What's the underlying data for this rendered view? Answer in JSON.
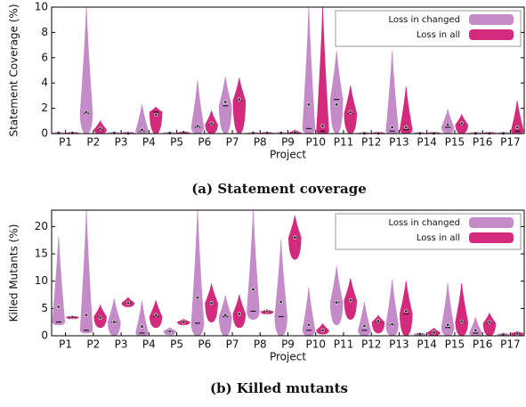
{
  "chart_data": [
    {
      "type": "violin",
      "caption": "(a) Statement coverage",
      "xlabel": "Project",
      "ylabel": "Statement Coverage (%)",
      "categories": [
        "P1",
        "P2",
        "P3",
        "P4",
        "P5",
        "P6",
        "P7",
        "P8",
        "P9",
        "P10",
        "P11",
        "P12",
        "P13",
        "P14",
        "P15",
        "P16",
        "P17"
      ],
      "ylim": [
        0,
        10
      ],
      "yticks": [
        0,
        2,
        4,
        6,
        8,
        10
      ],
      "legend": "upper right",
      "series": [
        {
          "name": "Loss in changed",
          "color": "#c58bc8",
          "min": [
            0,
            0,
            0,
            0,
            0,
            0,
            0,
            0,
            0,
            0,
            0,
            0,
            0,
            0,
            0,
            0,
            0
          ],
          "max": [
            0.1,
            10,
            0.1,
            2.3,
            0.1,
            4.2,
            4.5,
            0.1,
            0.1,
            10,
            6.5,
            0.05,
            6.5,
            0.05,
            1.9,
            0.05,
            0.05
          ],
          "median": [
            0,
            1.6,
            0,
            0.2,
            0,
            0.5,
            2.2,
            0,
            0,
            0.4,
            2.7,
            0,
            0.2,
            0,
            0.5,
            0,
            0
          ],
          "mean": [
            0.05,
            1.7,
            0.05,
            0.3,
            0.05,
            0.6,
            2.5,
            0.05,
            0.05,
            2.3,
            2.3,
            0.02,
            0.5,
            0.02,
            0.7,
            0.02,
            0.02
          ]
        },
        {
          "name": "Loss in all",
          "color": "#d42a7e",
          "min": [
            0,
            0,
            0,
            0,
            0,
            0,
            0,
            0,
            0,
            0,
            0,
            0,
            0,
            0,
            0,
            0,
            0
          ],
          "max": [
            0.1,
            1,
            0.05,
            2.1,
            0.2,
            1.8,
            4.4,
            0.1,
            0.3,
            10,
            3.8,
            0.05,
            3.7,
            0.05,
            1.5,
            0.05,
            2.6
          ],
          "median": [
            0,
            0.3,
            0,
            1.7,
            0.05,
            0.7,
            2.6,
            0,
            0.05,
            0.2,
            1.6,
            0,
            0.3,
            0,
            0.7,
            0,
            0.2
          ],
          "mean": [
            0.05,
            0.4,
            0.02,
            1.5,
            0.1,
            0.8,
            2.7,
            0.05,
            0.1,
            0.6,
            1.7,
            0.02,
            0.5,
            0.02,
            0.8,
            0.02,
            0.5
          ]
        }
      ]
    },
    {
      "type": "violin",
      "caption": "(b) Killed mutants",
      "xlabel": "Project",
      "ylabel": "Killed Mutants (%)",
      "categories": [
        "P1",
        "P2",
        "P3",
        "P4",
        "P5",
        "P6",
        "P7",
        "P8",
        "P9",
        "P10",
        "P11",
        "P12",
        "P13",
        "P14",
        "P15",
        "P16",
        "P17"
      ],
      "ylim": [
        0,
        23
      ],
      "yticks": [
        0,
        5,
        10,
        15,
        20
      ],
      "legend": "upper right",
      "series": [
        {
          "name": "Loss in changed",
          "color": "#c58bc8",
          "min": [
            2,
            0.5,
            0,
            0,
            0.2,
            0,
            0,
            3,
            0,
            0,
            2,
            0,
            0,
            0,
            0,
            0,
            0
          ],
          "max": [
            18.2,
            23,
            6.8,
            6.4,
            1.5,
            23,
            7.4,
            23,
            17.5,
            8.8,
            12.7,
            6.2,
            10.3,
            0.6,
            9.6,
            3.4,
            0.6
          ],
          "median": [
            2.5,
            1,
            2.5,
            0.5,
            0.8,
            2.3,
            3.5,
            4.5,
            3.5,
            1,
            6.1,
            1,
            2,
            0.3,
            1.5,
            0.5,
            0.2
          ],
          "mean": [
            5.3,
            3.8,
            2.5,
            1.7,
            0.8,
            7,
            3.8,
            8.5,
            6.2,
            2,
            6.1,
            1.8,
            2.1,
            0.3,
            2,
            1,
            0.2
          ]
        },
        {
          "name": "Loss in all",
          "color": "#d42a7e",
          "min": [
            3.1,
            1.5,
            5.3,
            1.5,
            2,
            2.5,
            1.5,
            4,
            14,
            0.3,
            3,
            0.5,
            0,
            0,
            0,
            0,
            0
          ],
          "max": [
            3.6,
            5.6,
            7,
            6.5,
            3,
            9.5,
            7.5,
            4.8,
            22,
            2.2,
            10.5,
            3.7,
            10,
            1.4,
            9.6,
            4.1,
            0.8
          ],
          "median": [
            3.4,
            3.5,
            6,
            3.5,
            2.5,
            6,
            4,
            4.4,
            18,
            1,
            6.5,
            2.5,
            4,
            0.6,
            2.5,
            2.3,
            0.4
          ],
          "mean": [
            3.4,
            3.3,
            6,
            3.8,
            2.5,
            6,
            4,
            4.4,
            18,
            1,
            6.5,
            2.7,
            4.5,
            0.6,
            2.6,
            2.5,
            0.4
          ]
        }
      ]
    }
  ]
}
